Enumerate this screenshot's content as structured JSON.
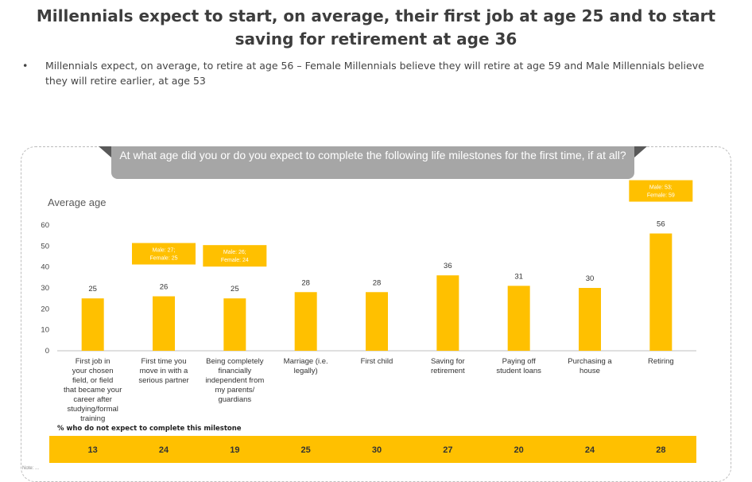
{
  "title": "Millennials expect to start, on average, their first job at age 25 and to start saving for retirement at age 36",
  "bullet": {
    "marker": "•",
    "text": "Millennials expect, on average, to retire at age 56 – Female Millennials believe they will retire at age 59 and Male Millennials believe they will retire earlier, at age 53"
  },
  "question": "At what age did you or do you expect to complete the following life milestones for the first time, if at all?",
  "missing_title": "% who do not expect to complete this milestone",
  "footnote": "Note: ...",
  "colors": {
    "bar": "#ffc000",
    "question_box": "#a6a6a6",
    "axis": "#bfbfbf"
  },
  "chart_data": {
    "type": "bar",
    "ylabel": "Average age",
    "ylim": [
      0,
      60
    ],
    "yticks": [
      0,
      10,
      20,
      30,
      40,
      50,
      60
    ],
    "grid": false,
    "categories": [
      "First job in your chosen field, or field that became your career after studying/formal training",
      "First time you move in with a serious partner",
      "Being completely financially independent from my parents/ guardians",
      "Marriage (i.e. legally)",
      "First child",
      "Saving for retirement",
      "Paying off student loans",
      "Purchasing a house",
      "Retiring"
    ],
    "values": [
      25,
      26,
      25,
      28,
      28,
      36,
      31,
      30,
      56
    ],
    "annotations": [
      {
        "category_index": 1,
        "lines": [
          "Male: 27;",
          "Female: 25"
        ]
      },
      {
        "category_index": 2,
        "lines": [
          "Male: 26;",
          "Female: 24"
        ]
      },
      {
        "category_index": 8,
        "lines": [
          "Male: 53;",
          "Female: 59"
        ]
      }
    ],
    "not_expected_pct": [
      13,
      24,
      19,
      25,
      30,
      27,
      20,
      24,
      28
    ]
  }
}
